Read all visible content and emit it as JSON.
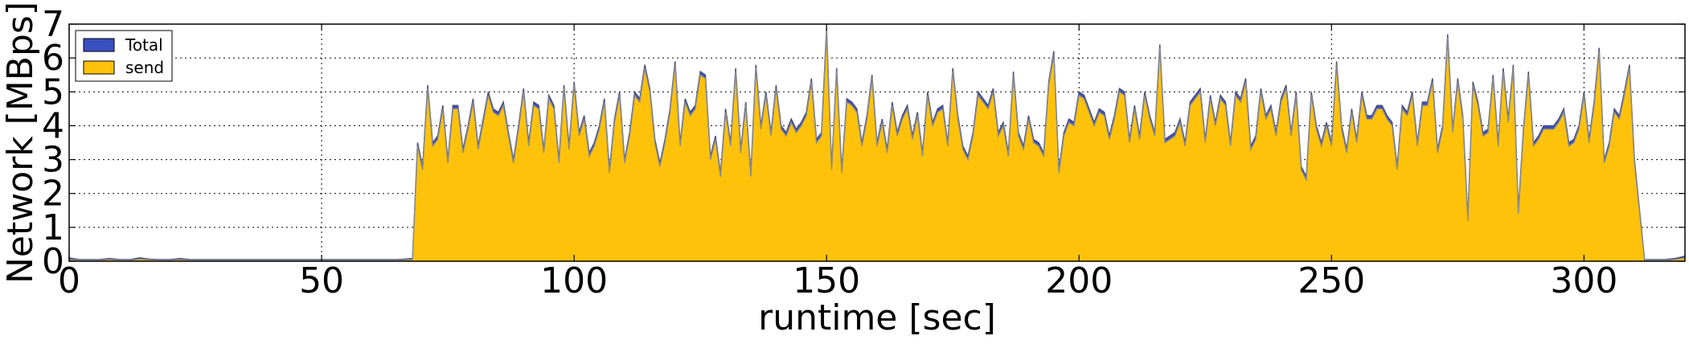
{
  "chart_data": {
    "type": "area",
    "xlabel": "runtime [sec]",
    "ylabel": "Network [MBps]",
    "xlim": [
      0,
      320
    ],
    "ylim": [
      0,
      7
    ],
    "xticks": [
      "0",
      "50",
      "100",
      "150",
      "200",
      "250",
      "300"
    ],
    "yticks": [
      "0",
      "1",
      "2",
      "3",
      "4",
      "5",
      "6",
      "7"
    ],
    "grid": true,
    "legend": "top-left",
    "series": [
      {
        "name": "Total",
        "color": "#3a4fc0"
      },
      {
        "name": "send",
        "color": "#ffc20a"
      }
    ],
    "x": [
      0,
      2,
      4,
      6,
      8,
      10,
      12,
      14,
      16,
      18,
      20,
      22,
      24,
      26,
      28,
      30,
      35,
      40,
      45,
      50,
      55,
      60,
      65,
      68,
      69,
      70,
      71,
      72,
      73,
      74,
      75,
      76,
      77,
      78,
      79,
      80,
      81,
      82,
      83,
      84,
      85,
      86,
      87,
      88,
      89,
      90,
      91,
      92,
      93,
      94,
      95,
      96,
      97,
      98,
      99,
      100,
      101,
      102,
      103,
      104,
      105,
      106,
      107,
      108,
      109,
      110,
      111,
      112,
      113,
      114,
      115,
      116,
      117,
      118,
      119,
      120,
      121,
      122,
      123,
      124,
      125,
      126,
      127,
      128,
      129,
      130,
      131,
      132,
      133,
      134,
      135,
      136,
      137,
      138,
      139,
      140,
      141,
      142,
      143,
      144,
      145,
      146,
      147,
      148,
      149,
      150,
      151,
      152,
      153,
      154,
      155,
      156,
      157,
      158,
      159,
      160,
      161,
      162,
      163,
      164,
      165,
      166,
      167,
      168,
      169,
      170,
      171,
      172,
      173,
      174,
      175,
      176,
      177,
      178,
      179,
      180,
      181,
      182,
      183,
      184,
      185,
      186,
      187,
      188,
      189,
      190,
      191,
      192,
      193,
      194,
      195,
      196,
      197,
      198,
      199,
      200,
      201,
      202,
      203,
      204,
      205,
      206,
      207,
      208,
      209,
      210,
      211,
      212,
      213,
      214,
      215,
      216,
      217,
      218,
      219,
      220,
      221,
      222,
      223,
      224,
      225,
      226,
      227,
      228,
      229,
      230,
      231,
      232,
      233,
      234,
      235,
      236,
      237,
      238,
      239,
      240,
      241,
      242,
      243,
      244,
      245,
      246,
      247,
      248,
      249,
      250,
      251,
      252,
      253,
      254,
      255,
      256,
      257,
      258,
      259,
      260,
      261,
      262,
      263,
      264,
      265,
      266,
      267,
      268,
      269,
      270,
      271,
      272,
      273,
      274,
      275,
      276,
      277,
      278,
      279,
      280,
      281,
      282,
      283,
      284,
      285,
      286,
      287,
      288,
      289,
      290,
      291,
      292,
      293,
      294,
      295,
      296,
      297,
      298,
      299,
      300,
      301,
      302,
      303,
      304,
      305,
      306,
      307,
      308,
      309,
      310,
      312,
      314,
      316,
      318,
      320
    ],
    "total": [
      0.1,
      0.05,
      0.05,
      0.05,
      0.08,
      0.05,
      0.05,
      0.1,
      0.06,
      0.05,
      0.05,
      0.08,
      0.05,
      0.05,
      0.05,
      0.05,
      0.05,
      0.05,
      0.05,
      0.05,
      0.05,
      0.05,
      0.05,
      0.08,
      3.5,
      2.8,
      5.2,
      3.5,
      3.7,
      4.6,
      3.0,
      4.6,
      4.6,
      3.3,
      4.0,
      4.8,
      3.4,
      4.2,
      5.0,
      4.5,
      4.4,
      4.7,
      3.8,
      3.0,
      4.0,
      5.1,
      3.5,
      4.7,
      4.6,
      3.3,
      4.9,
      4.6,
      3.0,
      5.2,
      3.4,
      5.3,
      3.8,
      4.3,
      3.2,
      3.5,
      4.0,
      4.8,
      2.7,
      4.2,
      5.0,
      3.0,
      3.8,
      5.0,
      4.8,
      5.8,
      5.1,
      3.6,
      2.9,
      3.6,
      4.5,
      5.9,
      3.5,
      4.8,
      4.4,
      4.6,
      5.6,
      5.5,
      3.1,
      3.7,
      2.6,
      4.5,
      3.5,
      5.7,
      3.3,
      4.7,
      2.6,
      5.8,
      4.0,
      5.0,
      3.8,
      5.2,
      4.0,
      3.8,
      4.2,
      3.9,
      4.1,
      4.4,
      5.4,
      3.6,
      3.8,
      6.9,
      2.8,
      5.7,
      2.7,
      4.8,
      4.7,
      4.5,
      3.5,
      4.3,
      5.5,
      3.5,
      4.2,
      3.3,
      4.7,
      3.8,
      4.3,
      4.6,
      3.7,
      4.4,
      3.2,
      5.0,
      4.1,
      4.5,
      4.6,
      3.5,
      5.7,
      4.3,
      3.4,
      3.1,
      3.8,
      5.0,
      4.8,
      4.6,
      5.1,
      3.8,
      4.1,
      3.2,
      5.6,
      3.8,
      3.4,
      4.3,
      3.6,
      3.5,
      3.2,
      5.3,
      6.2,
      2.7,
      3.8,
      4.2,
      4.1,
      5.0,
      4.9,
      4.5,
      4.1,
      4.5,
      4.4,
      3.7,
      4.3,
      5.1,
      5.0,
      3.6,
      4.6,
      3.7,
      5.0,
      4.3,
      3.8,
      6.4,
      3.6,
      3.7,
      3.8,
      4.2,
      3.5,
      4.7,
      4.9,
      5.1,
      3.6,
      4.9,
      4.1,
      4.9,
      4.7,
      3.5,
      5.0,
      4.8,
      5.4,
      3.4,
      3.7,
      5.1,
      4.3,
      4.6,
      3.8,
      4.8,
      5.2,
      3.8,
      5.0,
      2.8,
      2.5,
      5.0,
      4.0,
      3.5,
      4.1,
      3.5,
      5.9,
      4.0,
      3.3,
      4.5,
      3.6,
      5.0,
      4.3,
      4.3,
      4.6,
      4.6,
      4.3,
      4.1,
      2.8,
      4.6,
      4.4,
      5.0,
      3.5,
      4.7,
      4.7,
      5.4,
      3.3,
      4.0,
      6.7,
      3.9,
      5.4,
      4.3,
      1.3,
      5.3,
      4.7,
      3.8,
      3.9,
      5.5,
      3.5,
      5.7,
      4.2,
      5.8,
      1.5,
      3.9,
      5.6,
      3.5,
      3.7,
      4.0,
      4.0,
      4.0,
      4.2,
      4.5,
      3.5,
      3.6,
      4.0,
      5.0,
      3.6,
      4.7,
      6.3,
      3.0,
      3.5,
      4.5,
      4.3,
      5.0,
      5.8,
      3.0,
      0.05,
      0.05,
      0.05,
      0.08,
      0.15
    ],
    "send": [
      0.05,
      0.03,
      0.03,
      0.03,
      0.05,
      0.03,
      0.03,
      0.06,
      0.04,
      0.03,
      0.03,
      0.05,
      0.03,
      0.03,
      0.03,
      0.03,
      0.03,
      0.03,
      0.03,
      0.03,
      0.03,
      0.03,
      0.03,
      0.05,
      3.4,
      2.7,
      5.1,
      3.4,
      3.6,
      4.5,
      2.9,
      4.5,
      4.5,
      3.2,
      3.9,
      4.7,
      3.3,
      4.1,
      4.9,
      4.4,
      4.3,
      4.6,
      3.7,
      2.9,
      3.9,
      5.0,
      3.4,
      4.6,
      4.5,
      3.2,
      4.8,
      4.5,
      2.9,
      5.1,
      3.3,
      5.2,
      3.7,
      4.2,
      3.1,
      3.4,
      3.9,
      4.7,
      2.6,
      4.1,
      4.9,
      2.9,
      3.7,
      4.9,
      4.7,
      5.7,
      5.0,
      3.5,
      2.8,
      3.5,
      4.4,
      5.8,
      3.4,
      4.7,
      4.3,
      4.5,
      5.5,
      5.4,
      3.0,
      3.6,
      2.5,
      4.4,
      3.4,
      5.6,
      3.2,
      4.6,
      2.5,
      5.7,
      3.9,
      4.9,
      3.7,
      5.1,
      3.9,
      3.7,
      4.1,
      3.8,
      4.0,
      4.3,
      5.3,
      3.5,
      3.7,
      6.8,
      2.7,
      5.6,
      2.6,
      4.7,
      4.6,
      4.4,
      3.4,
      4.2,
      5.4,
      3.4,
      4.1,
      3.2,
      4.6,
      3.7,
      4.2,
      4.5,
      3.6,
      4.3,
      3.1,
      4.9,
      4.0,
      4.4,
      4.5,
      3.4,
      5.6,
      4.2,
      3.3,
      3.0,
      3.7,
      4.9,
      4.7,
      4.5,
      5.0,
      3.7,
      4.0,
      3.1,
      5.5,
      3.7,
      3.3,
      4.2,
      3.5,
      3.4,
      3.1,
      5.2,
      6.1,
      2.6,
      3.7,
      4.1,
      4.0,
      4.9,
      4.8,
      4.4,
      4.0,
      4.4,
      4.3,
      3.6,
      4.2,
      5.0,
      4.9,
      3.5,
      4.5,
      3.6,
      4.9,
      4.2,
      3.7,
      6.3,
      3.5,
      3.6,
      3.7,
      4.1,
      3.4,
      4.6,
      4.8,
      5.0,
      3.5,
      4.8,
      4.0,
      4.8,
      4.6,
      3.4,
      4.9,
      4.7,
      5.3,
      3.3,
      3.6,
      5.0,
      4.2,
      4.5,
      3.7,
      4.7,
      5.1,
      3.7,
      4.9,
      2.7,
      2.4,
      4.9,
      3.9,
      3.4,
      4.0,
      3.4,
      5.8,
      3.9,
      3.2,
      4.4,
      3.5,
      4.9,
      4.2,
      4.2,
      4.5,
      4.5,
      4.2,
      4.0,
      2.7,
      4.5,
      4.3,
      4.9,
      3.4,
      4.6,
      4.6,
      5.3,
      3.2,
      3.9,
      6.6,
      3.8,
      5.3,
      4.2,
      1.2,
      5.2,
      4.6,
      3.7,
      3.8,
      5.4,
      3.4,
      5.6,
      4.1,
      5.7,
      1.4,
      3.8,
      5.5,
      3.4,
      3.6,
      3.9,
      3.9,
      3.9,
      4.1,
      4.4,
      3.4,
      3.5,
      3.9,
      4.9,
      3.5,
      4.6,
      6.2,
      2.9,
      3.4,
      4.4,
      4.2,
      4.9,
      5.7,
      2.9,
      0.03,
      0.03,
      0.03,
      0.05,
      0.1
    ]
  }
}
